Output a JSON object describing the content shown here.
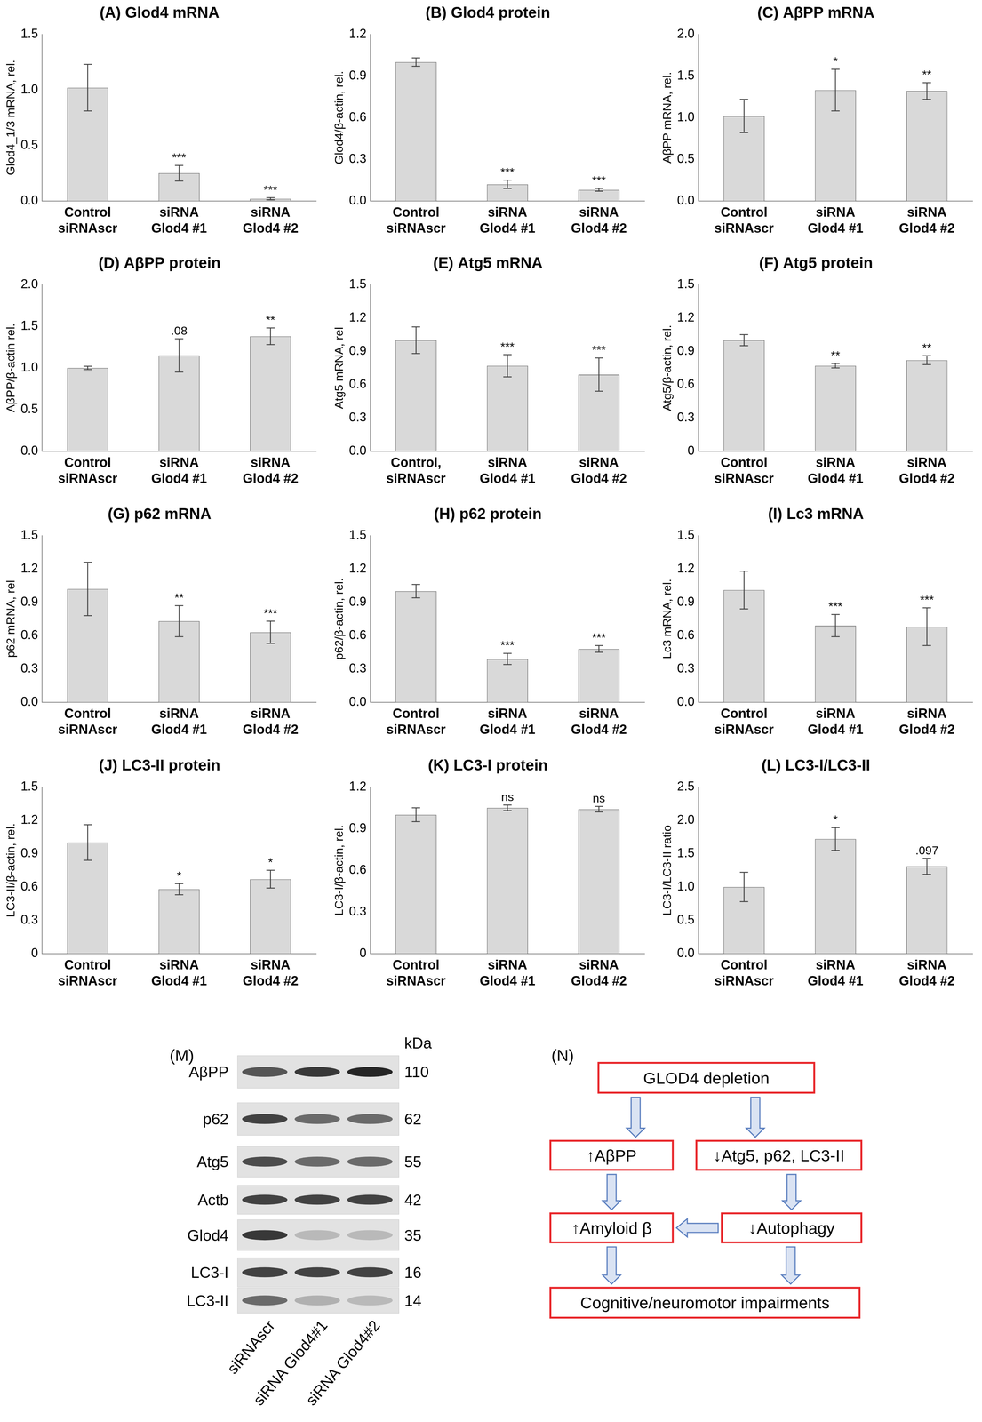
{
  "chart_data": [
    {
      "type": "bar",
      "title": "(A) Glod4 mRNA",
      "ylabel": "Glod4_1/3 mRNA, rel.",
      "categories": [
        "Control siRNAscr",
        "siRNA Glod4 #1",
        "siRNA Glod4 #2"
      ],
      "values": [
        1.02,
        0.25,
        0.02
      ],
      "errors": [
        0.21,
        0.07,
        0.01
      ],
      "annotations": [
        null,
        "***",
        "***"
      ],
      "color": "#d9d9d9",
      "ylim": [
        0,
        1.5
      ],
      "yticks": [
        {
          "value": 0,
          "label": "0.0"
        },
        0.5,
        {
          "value": 1,
          "label": "1.0"
        },
        1.5
      ],
      "grid": false
    },
    {
      "type": "bar",
      "title": "(B) Glod4 protein",
      "ylabel": "Glod4/β-actin, rel.",
      "categories": [
        "Control siRNAscr",
        "siRNA Glod4 #1",
        "siRNA Glod4 #2"
      ],
      "values": [
        1.0,
        0.12,
        0.08
      ],
      "errors": [
        0.03,
        0.03,
        0.01
      ],
      "annotations": [
        null,
        "***",
        "***"
      ],
      "color": "#d9d9d9",
      "ylim": [
        0,
        1.2
      ],
      "yticks": [
        {
          "value": 0,
          "label": "0.0"
        },
        0.3,
        0.6,
        0.9,
        1.2
      ],
      "grid": false
    },
    {
      "type": "bar",
      "title": "(C) AβPP mRNA",
      "ylabel": "AβPP mRNA, rel.",
      "categories": [
        "Control siRNAscr",
        "siRNA Glod4 #1",
        "siRNA Glod4 #2"
      ],
      "values": [
        1.02,
        1.33,
        1.32
      ],
      "errors": [
        0.2,
        0.25,
        0.1
      ],
      "annotations": [
        null,
        "*",
        "**"
      ],
      "color": "#d9d9d9",
      "ylim": [
        0,
        2.0
      ],
      "yticks": [
        {
          "value": 0,
          "label": "0.0"
        },
        0.5,
        {
          "value": 1,
          "label": "1.0"
        },
        1.5,
        {
          "value": 2,
          "label": "2.0"
        }
      ],
      "grid": false
    },
    {
      "type": "bar",
      "title": "(D) AβPP protein",
      "ylabel": "AβPP/β-actin rel.",
      "categories": [
        "Control siRNAscr",
        "siRNA Glod4 #1",
        "siRNA Glod4 #2"
      ],
      "values": [
        1.0,
        1.15,
        1.38
      ],
      "errors": [
        0.02,
        0.2,
        0.1
      ],
      "annotations": [
        null,
        ".08",
        "**"
      ],
      "color": "#d9d9d9",
      "ylim": [
        0,
        2.0
      ],
      "yticks": [
        {
          "value": 0,
          "label": "0.0"
        },
        0.5,
        {
          "value": 1,
          "label": "1.0"
        },
        1.5,
        {
          "value": 2,
          "label": "2.0"
        }
      ],
      "grid": false
    },
    {
      "type": "bar",
      "title": "(E) Atg5 mRNA",
      "ylabel": "Atg5 mRNA, rel",
      "categories": [
        "Control, siRNAscr",
        "siRNA Glod4 #1",
        "siRNA Glod4 #2"
      ],
      "values": [
        1.0,
        0.77,
        0.69
      ],
      "errors": [
        0.12,
        0.1,
        0.15
      ],
      "annotations": [
        null,
        "***",
        "***"
      ],
      "color": "#d9d9d9",
      "ylim": [
        0,
        1.5
      ],
      "yticks": [
        {
          "value": 0,
          "label": "0.0"
        },
        0.3,
        0.6,
        0.9,
        1.2,
        1.5
      ],
      "grid": false
    },
    {
      "type": "bar",
      "title": "(F) Atg5 protein",
      "ylabel": "Atg5/β-actin, rel.",
      "categories": [
        "Control siRNAscr",
        "siRNA Glod4 #1",
        "siRNA Glod4 #2"
      ],
      "values": [
        1.0,
        0.77,
        0.82
      ],
      "errors": [
        0.05,
        0.02,
        0.04
      ],
      "annotations": [
        null,
        "**",
        "**"
      ],
      "color": "#d9d9d9",
      "ylim": [
        0,
        1.5
      ],
      "yticks": [
        0,
        0.3,
        0.6,
        0.9,
        1.2,
        1.5
      ],
      "grid": false
    },
    {
      "type": "bar",
      "title": "(G) p62 mRNA",
      "ylabel": "p62 mRNA, rel",
      "categories": [
        "Control siRNAscr",
        "siRNA Glod4 #1",
        "siRNA Glod4 #2"
      ],
      "values": [
        1.02,
        0.73,
        0.63
      ],
      "errors": [
        0.24,
        0.14,
        0.1
      ],
      "annotations": [
        null,
        "**",
        "***"
      ],
      "color": "#d9d9d9",
      "ylim": [
        0,
        1.5
      ],
      "yticks": [
        {
          "value": 0,
          "label": "0.0"
        },
        0.3,
        0.6,
        0.9,
        1.2,
        1.5
      ],
      "grid": false
    },
    {
      "type": "bar",
      "title": "(H) p62 protein",
      "ylabel": "p62/β-actin, rel.",
      "categories": [
        "Control siRNAscr",
        "siRNA Glod4 #1",
        "siRNA Glod4 #2"
      ],
      "values": [
        1.0,
        0.39,
        0.48
      ],
      "errors": [
        0.06,
        0.05,
        0.03
      ],
      "annotations": [
        null,
        "***",
        "***"
      ],
      "color": "#d9d9d9",
      "ylim": [
        0,
        1.5
      ],
      "yticks": [
        {
          "value": 0,
          "label": "0.0"
        },
        0.3,
        0.6,
        0.9,
        1.2,
        1.5
      ],
      "grid": false
    },
    {
      "type": "bar",
      "title": "(I) Lc3 mRNA",
      "ylabel": "Lc3 mRNA, rel.",
      "categories": [
        "Control siRNAscr",
        "siRNA Glod4 #1",
        "siRNA Glod4 #2"
      ],
      "values": [
        1.01,
        0.69,
        0.68
      ],
      "errors": [
        0.17,
        0.1,
        0.17
      ],
      "annotations": [
        null,
        "***",
        "***"
      ],
      "color": "#d9d9d9",
      "ylim": [
        0,
        1.5
      ],
      "yticks": [
        {
          "value": 0,
          "label": "0.0"
        },
        0.3,
        0.6,
        0.9,
        1.2,
        1.5
      ],
      "grid": false
    },
    {
      "type": "bar",
      "title": "(J) LC3-II protein",
      "ylabel": "LC3-II/β-actin, rel.",
      "categories": [
        "Control siRNAscr",
        "siRNA Glod4 #1",
        "siRNA Glod4 #2"
      ],
      "values": [
        1.0,
        0.58,
        0.67
      ],
      "errors": [
        0.16,
        0.05,
        0.08
      ],
      "annotations": [
        null,
        "*",
        "*"
      ],
      "color": "#d9d9d9",
      "ylim": [
        0,
        1.5
      ],
      "yticks": [
        0,
        0.3,
        0.6,
        0.9,
        1.2,
        1.5
      ],
      "grid": false
    },
    {
      "type": "bar",
      "title": "(K) LC3-I protein",
      "ylabel": "LC3-I/β-actin, rel.",
      "categories": [
        "Control siRNAscr",
        "siRNA Glod4 #1",
        "siRNA Glod4 #2"
      ],
      "values": [
        1.0,
        1.05,
        1.04
      ],
      "errors": [
        0.05,
        0.02,
        0.02
      ],
      "annotations": [
        null,
        "ns",
        "ns"
      ],
      "color": "#d9d9d9",
      "ylim": [
        0,
        1.2
      ],
      "yticks": [
        0,
        0.3,
        0.6,
        0.9,
        1.2
      ],
      "grid": false
    },
    {
      "type": "bar",
      "title": "(L) LC3-I/LC3-II",
      "ylabel": "LC3-I/LC3-II ratio",
      "categories": [
        "Control siRNAscr",
        "siRNA Glod4 #1",
        "siRNA Glod4 #2"
      ],
      "values": [
        1.0,
        1.72,
        1.31
      ],
      "errors": [
        0.22,
        0.17,
        0.12
      ],
      "annotations": [
        null,
        "*",
        ".097"
      ],
      "color": "#d9d9d9",
      "ylim": [
        0,
        2.5
      ],
      "yticks": [
        {
          "value": 0,
          "label": "0.0"
        },
        0.5,
        {
          "value": 1,
          "label": "1.0"
        },
        1.5,
        {
          "value": 2,
          "label": "2.0"
        },
        2.5
      ],
      "grid": false
    }
  ],
  "blot": {
    "label": "(M)",
    "unit": "kDa",
    "lanes": [
      "siRNAscr",
      "siRNA Glod4#1",
      "siRNA Glod4#2"
    ],
    "rows": [
      {
        "name": "AβPP",
        "kda": 110,
        "intensity": [
          0.7,
          0.85,
          0.95
        ]
      },
      {
        "name": "p62",
        "kda": 62,
        "intensity": [
          0.8,
          0.6,
          0.6
        ]
      },
      {
        "name": "Atg5",
        "kda": 55,
        "intensity": [
          0.75,
          0.6,
          0.6
        ]
      },
      {
        "name": "Actb",
        "kda": 42,
        "intensity": [
          0.8,
          0.8,
          0.8
        ]
      },
      {
        "name": "Glod4",
        "kda": 35,
        "intensity": [
          0.85,
          0.2,
          0.2
        ]
      },
      {
        "name": "LC3-I",
        "kda": 16,
        "intensity": [
          0.8,
          0.8,
          0.8
        ]
      },
      {
        "name": "LC3-II",
        "kda": 14,
        "intensity": [
          0.6,
          0.25,
          0.2
        ]
      }
    ]
  },
  "diagram": {
    "label": "(N)",
    "nodes": [
      "GLOD4 depletion",
      "↑AβPP",
      "↓Atg5, p62, LC3-II",
      "↑Amyloid β",
      "↓Autophagy",
      "Cognitive/neuromotor impairments"
    ],
    "edges": [
      {
        "from": 0,
        "to": 1
      },
      {
        "from": 0,
        "to": 2
      },
      {
        "from": 1,
        "to": 3
      },
      {
        "from": 2,
        "to": 4
      },
      {
        "from": 4,
        "to": 3
      },
      {
        "from": 3,
        "to": 5
      },
      {
        "from": 4,
        "to": 5
      }
    ]
  }
}
